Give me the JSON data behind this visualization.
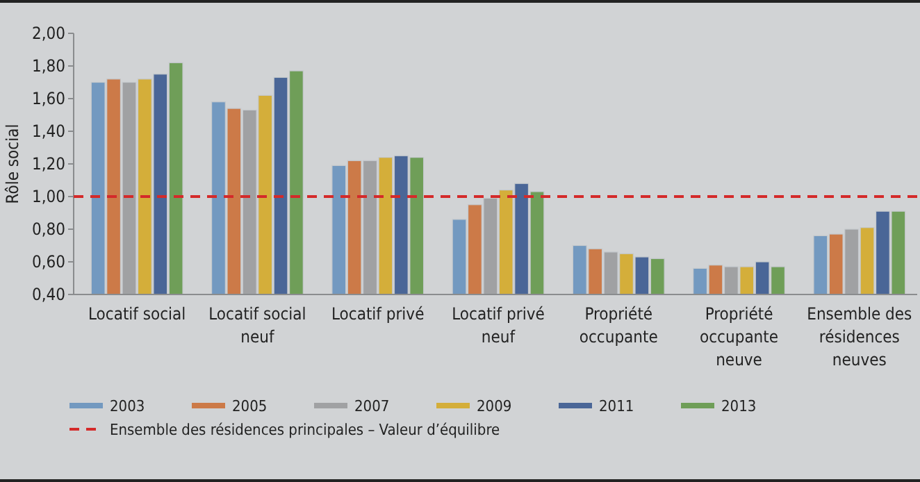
{
  "chart_data": {
    "type": "bar",
    "ylabel": "Rôle social",
    "categories": [
      "Locatif social",
      "Locatif social neuf",
      "Locatif privé",
      "Locatif privé neuf",
      "Propriété occupante",
      "Propriété occupante neuve",
      "Ensemble des résidences neuves"
    ],
    "series": [
      {
        "name": "2003",
        "color": "#7399c0",
        "values": [
          1.7,
          1.58,
          1.19,
          0.86,
          0.7,
          0.56,
          0.76
        ]
      },
      {
        "name": "2005",
        "color": "#cc7a48",
        "values": [
          1.72,
          1.54,
          1.22,
          0.95,
          0.68,
          0.58,
          0.77
        ]
      },
      {
        "name": "2007",
        "color": "#a0a1a3",
        "values": [
          1.7,
          1.53,
          1.22,
          0.99,
          0.66,
          0.57,
          0.8
        ]
      },
      {
        "name": "2009",
        "color": "#d4ae3a",
        "values": [
          1.72,
          1.62,
          1.24,
          1.04,
          0.65,
          0.57,
          0.81
        ]
      },
      {
        "name": "2011",
        "color": "#4a6697",
        "values": [
          1.75,
          1.73,
          1.25,
          1.08,
          0.63,
          0.6,
          0.91
        ]
      },
      {
        "name": "2013",
        "color": "#6f9e58",
        "values": [
          1.82,
          1.77,
          1.24,
          1.03,
          0.62,
          0.57,
          0.91
        ]
      }
    ],
    "ylim": [
      0.4,
      2.0
    ],
    "yticks": [
      {
        "value": 0.4,
        "label": "0,40"
      },
      {
        "value": 0.6,
        "label": "0,60"
      },
      {
        "value": 0.8,
        "label": "0,80"
      },
      {
        "value": 1.0,
        "label": "1,00"
      },
      {
        "value": 1.2,
        "label": "1,20"
      },
      {
        "value": 1.4,
        "label": "1,40"
      },
      {
        "value": 1.6,
        "label": "1,60"
      },
      {
        "value": 1.8,
        "label": "1,80"
      },
      {
        "value": 2.0,
        "label": "2,00"
      }
    ],
    "ref_lines": [
      {
        "axis": "y",
        "value": 1.0,
        "label": "Ensemble des résidences principales – Valeur d’équilibre",
        "color": "#d42a2a",
        "line_style": "dashed"
      }
    ],
    "grid": false,
    "legend": "bottom"
  }
}
